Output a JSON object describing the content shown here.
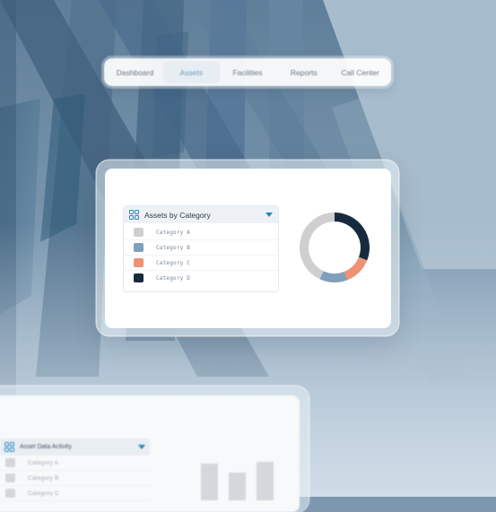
{
  "nav": {
    "tabs": [
      {
        "label": "Dashboard",
        "active": false
      },
      {
        "label": "Assets",
        "active": true
      },
      {
        "label": "Facilities",
        "active": false
      },
      {
        "label": "Reports",
        "active": false
      },
      {
        "label": "Call Center",
        "active": false
      }
    ]
  },
  "assets_panel": {
    "title": "Assets by Category",
    "icon": "grid-icon",
    "dropdown_icon": "caret-down-icon",
    "legend": [
      {
        "label": "Category A",
        "color": "#cfcfcf"
      },
      {
        "label": "Category B",
        "color": "#7fa0bb"
      },
      {
        "label": "Category C",
        "color": "#ef9274"
      },
      {
        "label": "Category D",
        "color": "#182a3e"
      }
    ]
  },
  "chart_data": {
    "type": "pie",
    "style": "donut",
    "categories": [
      "Category A",
      "Category B",
      "Category C",
      "Category D"
    ],
    "values": [
      43,
      13,
      13,
      31
    ],
    "colors": [
      "#cfcfcf",
      "#7fa0bb",
      "#ef9274",
      "#182a3e"
    ]
  },
  "activity_panel": {
    "title": "Asset Data Activity",
    "icon": "grid-icon",
    "dropdown_icon": "caret-down-icon",
    "items": [
      {
        "label": "Category A"
      },
      {
        "label": "Category B"
      },
      {
        "label": "Category C"
      }
    ],
    "bar_values": [
      0.82,
      0.62,
      0.86
    ]
  },
  "colors": {
    "accent": "#2a86b8",
    "background": "#7c97ae"
  }
}
